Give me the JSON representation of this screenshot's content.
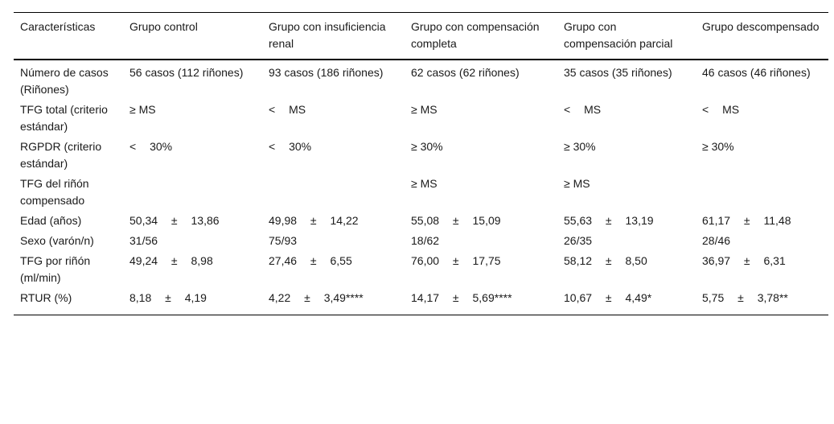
{
  "table": {
    "headers": [
      "Características",
      "Grupo control",
      "Grupo con insuficiencia renal",
      "Grupo con compensación completa",
      "Grupo con compensación parcial",
      "Grupo descompensado"
    ],
    "rows": [
      [
        "Número de casos (Riñones)",
        "56 casos (112 riñones)",
        "93 casos (186 riñones)",
        "62 casos (62 riñones)",
        "35 casos (35 riñones)",
        "46 casos (46 riñones)"
      ],
      [
        "TFG total (criterio estándar)",
        "≥ MS",
        "< MS",
        "≥ MS",
        "< MS",
        "< MS"
      ],
      [
        "RGPDR (criterio estándar)",
        "< 30%",
        "< 30%",
        "≥ 30%",
        "≥ 30%",
        "≥ 30%"
      ],
      [
        "TFG del riñón compensado",
        "",
        "",
        "≥ MS",
        "≥ MS",
        ""
      ],
      [
        "Edad (años)",
        "50,34 ± 13,86",
        "49,98 ± 14,22",
        "55,08 ± 15,09",
        "55,63 ± 13,19",
        "61,17 ± 11,48"
      ],
      [
        "Sexo (varón/n)",
        "31/56",
        "75/93",
        "18/62",
        "26/35",
        "28/46"
      ],
      [
        "TFG por riñón (ml/min)",
        "49,24 ± 8,98",
        "27,46 ± 6,55",
        "76,00 ± 17,75",
        "58,12 ± 8,50",
        "36,97 ± 6,31"
      ],
      [
        "RTUR (%)",
        "8,18 ± 4,19",
        "4,22 ± 3,49****",
        "14,17 ± 5,69****",
        "10,67 ± 4,49*",
        "5,75 ± 3,78**"
      ]
    ]
  }
}
